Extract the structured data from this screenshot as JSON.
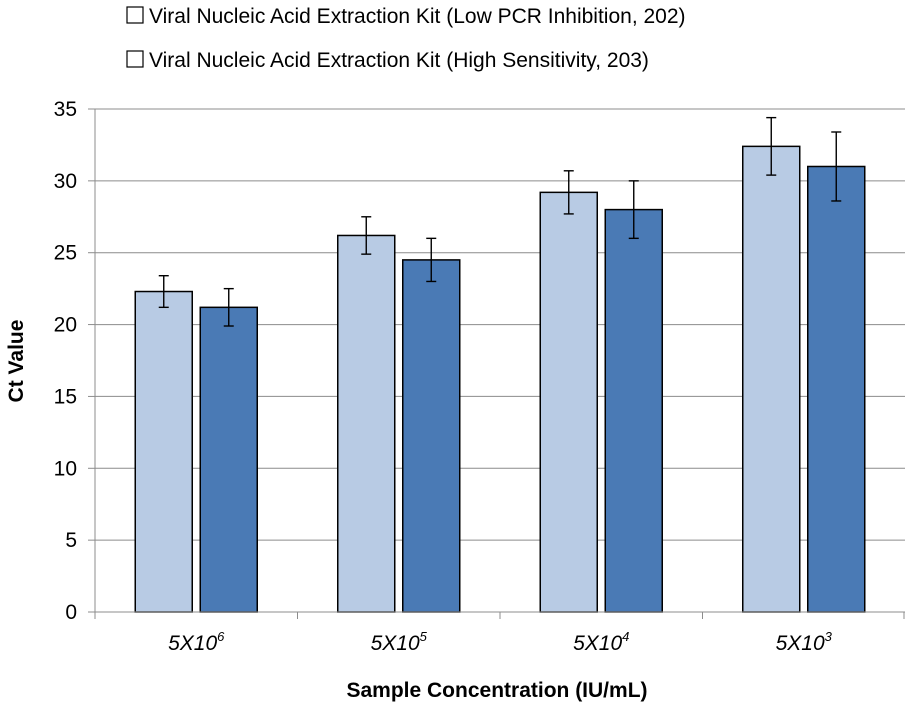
{
  "chart_data": {
    "type": "bar",
    "categories": [
      {
        "base": "5X10",
        "exp": "6"
      },
      {
        "base": "5X10",
        "exp": "5"
      },
      {
        "base": "5X10",
        "exp": "4"
      },
      {
        "base": "5X10",
        "exp": "3"
      }
    ],
    "series": [
      {
        "name": "Viral Nucleic Acid Extraction Kit (Low PCR Inhibition, 202)",
        "color": "#b8cbe4",
        "values": [
          22.3,
          26.2,
          29.2,
          32.4
        ],
        "error": [
          1.1,
          1.3,
          1.5,
          2.0
        ]
      },
      {
        "name": "Viral Nucleic Acid Extraction Kit (High Sensitivity, 203)",
        "color": "#4a7ab5",
        "values": [
          21.2,
          24.5,
          28.0,
          31.0
        ],
        "error": [
          1.3,
          1.5,
          2.0,
          2.4
        ]
      }
    ],
    "xlabel": "Sample Concentration (IU/mL)",
    "ylabel": "Ct Value",
    "ylim": [
      0,
      35
    ],
    "yticks": [
      "0",
      "5",
      "10",
      "15",
      "20",
      "25",
      "30",
      "35"
    ],
    "grid": true,
    "legend": "top"
  }
}
